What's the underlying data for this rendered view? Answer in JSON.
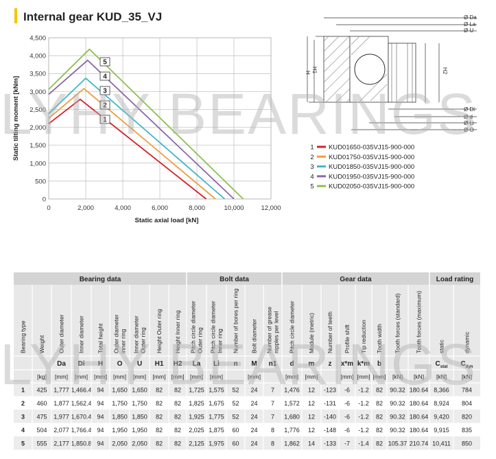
{
  "title": "Internal gear KUD_35_VJ",
  "watermark": "LYHY BEARINGS",
  "chart_data": {
    "type": "line",
    "x_label": "Static axial load [kN]",
    "y_label": "Static tilting moment [kNm]",
    "xlim": [
      0,
      12000
    ],
    "xticks": [
      0,
      {
        "value": 2000,
        "label": "2,000"
      },
      {
        "value": 4000,
        "label": "4,000"
      },
      {
        "value": 6000,
        "label": "6,000"
      },
      {
        "value": 8000,
        "label": "8,000"
      },
      {
        "value": 10000,
        "label": "10,000"
      },
      {
        "value": 12000,
        "label": "12,000"
      }
    ],
    "ylim": [
      0,
      4500
    ],
    "yticks": [
      0,
      500,
      {
        "value": 1000,
        "label": "1,000"
      },
      {
        "value": 1500,
        "label": "1,500"
      },
      {
        "value": 2000,
        "label": "2,000"
      },
      {
        "value": 2500,
        "label": "2,500"
      },
      {
        "value": 3000,
        "label": "3,000"
      },
      {
        "value": 3500,
        "label": "3,500"
      },
      {
        "value": 4000,
        "label": "4,000"
      },
      {
        "value": 4500,
        "label": "4,500"
      }
    ],
    "grid": true,
    "series": [
      {
        "label": "1",
        "name": "KUD01650-035VJ15-900-000",
        "color": "#d42027",
        "x": [
          0,
          1700,
          8500
        ],
        "values": [
          2100,
          2780,
          0
        ]
      },
      {
        "label": "2",
        "name": "KUD01750-035VJ15-900-000",
        "color": "#f39a3c",
        "x": [
          0,
          1900,
          9000
        ],
        "values": [
          2250,
          3080,
          0
        ]
      },
      {
        "label": "3",
        "name": "KUD01850-035VJ15-900-000",
        "color": "#3fb7c9",
        "x": [
          0,
          2000,
          9500
        ],
        "values": [
          2380,
          3370,
          0
        ]
      },
      {
        "label": "4",
        "name": "KUD01950-035VJ15-900-000",
        "color": "#8a67a6",
        "x": [
          0,
          2100,
          10000
        ],
        "values": [
          2920,
          3870,
          0
        ]
      },
      {
        "label": "5",
        "name": "KUD02050-035VJ15-900-000",
        "color": "#8dbf4e",
        "x": [
          0,
          2200,
          10500
        ],
        "values": [
          3060,
          4180,
          0
        ]
      }
    ]
  },
  "diagram": {
    "labels": [
      "Ø Da",
      "Ø La",
      "Ø U",
      "Ø Di",
      "Ø d",
      "Ø Li",
      "Ø O",
      "H",
      "H1",
      "H2"
    ]
  },
  "table": {
    "groups": [
      "Bearing data",
      "Bolt data",
      "Gear data",
      "Load rating"
    ],
    "columns": [
      {
        "header": [
          "Bearing type"
        ]
      },
      {
        "header": [
          "Weight"
        ],
        "unit": "[kg]"
      },
      {
        "header": [
          "Outer diameter"
        ],
        "symbol": "Da",
        "unit": "[mm]"
      },
      {
        "header": [
          "Inner diameter"
        ],
        "symbol": "Di",
        "unit": "[mm]"
      },
      {
        "header": [
          "Total height"
        ],
        "symbol": "H",
        "unit": "[mm]"
      },
      {
        "header": [
          "Outer diameter",
          "inner ring"
        ],
        "symbol": "O",
        "unit": "[mm]"
      },
      {
        "header": [
          "Inner diameter",
          "Outer ring"
        ],
        "symbol": "U",
        "unit": "[mm]"
      },
      {
        "header": [
          "Height Outer ring"
        ],
        "symbol": "H1",
        "unit": "[mm]"
      },
      {
        "header": [
          "Height Inner ring"
        ],
        "symbol": "H2",
        "unit": "[mm]"
      },
      {
        "header": [
          "Pitch circle diameter",
          "Outer ring"
        ],
        "symbol": "La",
        "unit": "[mm]"
      },
      {
        "header": [
          "Pitch circle diameter",
          "Inner ring"
        ],
        "symbol": "Li",
        "unit": "[mm]"
      },
      {
        "header": [
          "Number of bores per ring"
        ],
        "symbol": "n"
      },
      {
        "header": [
          "Bolt diameter"
        ],
        "symbol": "M",
        "unit": "[mm]"
      },
      {
        "header": [
          "Number of grease",
          "nipples per level"
        ],
        "symbol": "n1"
      },
      {
        "header": [
          "Pitch circle diameter"
        ],
        "symbol": "d",
        "unit": "[mm]"
      },
      {
        "header": [
          "Module (metric)"
        ],
        "symbol": "m",
        "unit": "[mm]"
      },
      {
        "header": [
          "Number of teeth"
        ],
        "symbol": "z"
      },
      {
        "header": [
          "Profile shift"
        ],
        "symbol": "x*m",
        "unit": "[mm]"
      },
      {
        "header": [
          "Tip reduction"
        ],
        "symbol": "k*m",
        "unit": "[mm]"
      },
      {
        "header": [
          "Tooth width"
        ],
        "symbol": "b",
        "unit": "[mm]"
      },
      {
        "header": [
          "Tooth forces (standard)"
        ],
        "unit": "[kN]"
      },
      {
        "header": [
          "Tooth forces (maximum)"
        ],
        "unit": "[kN]"
      },
      {
        "header": [
          "static"
        ],
        "symbol": {
          "main": "C",
          "sub": "stat"
        },
        "unit": "[kN]"
      },
      {
        "header": [
          "dynamic"
        ],
        "symbol": {
          "main": "C",
          "sub": "dyn"
        },
        "unit": "[kN]"
      }
    ],
    "rows": [
      [
        "1",
        "425",
        "1,777",
        "1,466.4",
        "94",
        "1,650",
        "1,650",
        "82",
        "82",
        "1,725",
        "1,575",
        "52",
        "24",
        "7",
        "1,476",
        "12",
        "-123",
        "-6",
        "-1.2",
        "82",
        "90.32",
        "180.64",
        "8,366",
        "784"
      ],
      [
        "2",
        "460",
        "1,877",
        "1,562.4",
        "94",
        "1,750",
        "1,750",
        "82",
        "82",
        "1,825",
        "1,675",
        "52",
        "24",
        "7",
        "1,572",
        "12",
        "-131",
        "-6",
        "-1.2",
        "82",
        "90.32",
        "180.64",
        "8,924",
        "804"
      ],
      [
        "3",
        "475",
        "1,977",
        "1,670.4",
        "94",
        "1,850",
        "1,850",
        "82",
        "82",
        "1,925",
        "1,775",
        "52",
        "24",
        "7",
        "1,680",
        "12",
        "-140",
        "-6",
        "-1.2",
        "82",
        "90.32",
        "180.64",
        "9,420",
        "820"
      ],
      [
        "4",
        "504",
        "2,077",
        "1,766.4",
        "94",
        "1,950",
        "1,950",
        "82",
        "82",
        "2,025",
        "1,875",
        "60",
        "24",
        "8",
        "1,776",
        "12",
        "-148",
        "-6",
        "-1.2",
        "82",
        "90.32",
        "180.64",
        "9,915",
        "835"
      ],
      [
        "5",
        "555",
        "2,177",
        "1,850.8",
        "94",
        "2,050",
        "2,050",
        "82",
        "82",
        "2,125",
        "1,975",
        "60",
        "24",
        "8",
        "1,862",
        "14",
        "-133",
        "-7",
        "-1.4",
        "82",
        "105.37",
        "210.74",
        "10,411",
        "850"
      ]
    ]
  }
}
